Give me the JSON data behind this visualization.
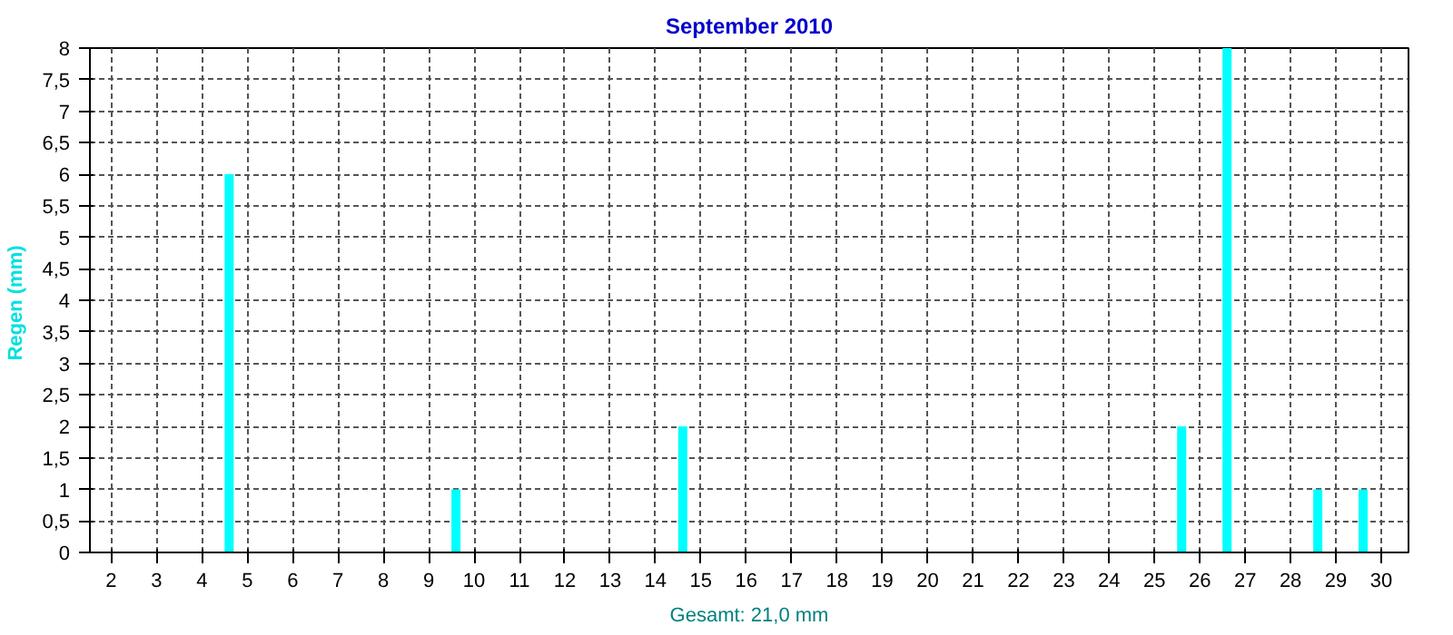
{
  "chart_data": {
    "type": "bar",
    "title": "September 2010",
    "ylabel": "Regen  (mm)",
    "annotations": [
      "Gesamt: 21,0 mm"
    ],
    "x": [
      1.6,
      2.6,
      3.6,
      4.6,
      5.6,
      6.6,
      7.6,
      8.6,
      9.6,
      10.6,
      11.6,
      12.6,
      13.6,
      14.6,
      15.6,
      16.6,
      17.6,
      18.6,
      19.6,
      20.6,
      21.6,
      22.6,
      23.6,
      24.6,
      25.6,
      26.6,
      27.6,
      28.6,
      29.6
    ],
    "values": [
      0,
      0,
      0,
      6,
      0,
      0,
      0,
      0,
      1,
      0,
      0,
      0,
      0,
      2,
      0,
      0,
      0,
      0,
      0,
      0,
      0,
      0,
      0,
      0,
      2,
      8,
      0,
      1,
      1
    ],
    "color": "#00ffff",
    "xlim": [
      1.53,
      30.6
    ],
    "xticks": [
      2,
      3,
      4,
      5,
      6,
      7,
      8,
      9,
      10,
      11,
      12,
      13,
      14,
      15,
      16,
      17,
      18,
      19,
      20,
      21,
      22,
      23,
      24,
      25,
      26,
      27,
      28,
      29,
      30
    ],
    "ylim": [
      0,
      8
    ],
    "yticks": [
      0,
      {
        "value": 0.5,
        "label": "0,5"
      },
      1,
      {
        "value": 1.5,
        "label": "1,5"
      },
      2,
      {
        "value": 2.5,
        "label": "2,5"
      },
      3,
      {
        "value": 3.5,
        "label": "3,5"
      },
      4,
      {
        "value": 4.5,
        "label": "4,5"
      },
      5,
      {
        "value": 5.5,
        "label": "5,5"
      },
      6,
      {
        "value": 6.5,
        "label": "6,5"
      },
      7,
      {
        "value": 7.5,
        "label": "7,5"
      },
      8
    ],
    "grid": true
  }
}
